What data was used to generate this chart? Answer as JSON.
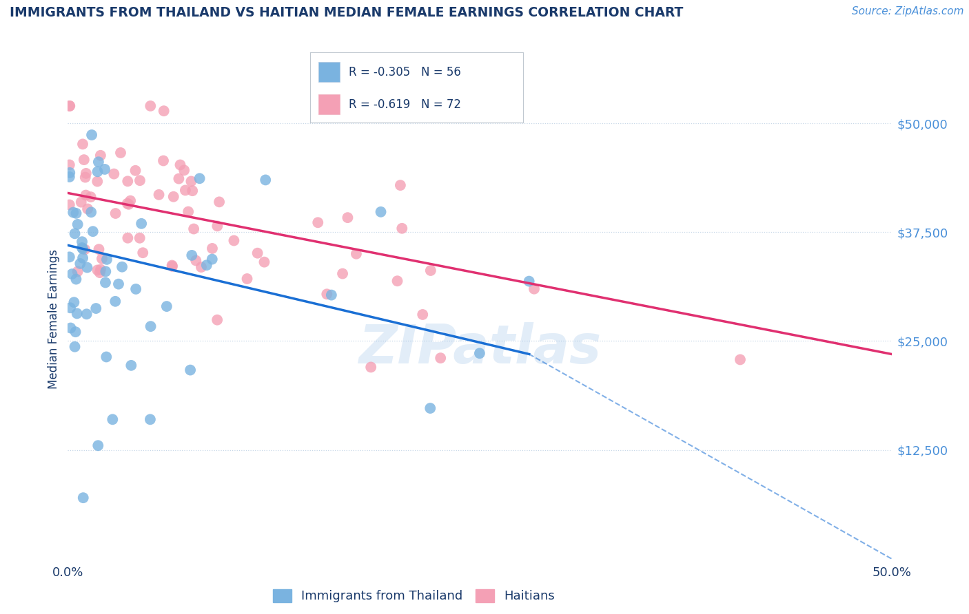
{
  "title": "IMMIGRANTS FROM THAILAND VS HAITIAN MEDIAN FEMALE EARNINGS CORRELATION CHART",
  "source": "Source: ZipAtlas.com",
  "ylabel": "Median Female Earnings",
  "xlim": [
    0.0,
    0.5
  ],
  "ylim": [
    0,
    55000
  ],
  "yticks": [
    0,
    12500,
    25000,
    37500,
    50000
  ],
  "ytick_labels": [
    "",
    "$12,500",
    "$25,000",
    "$37,500",
    "$50,000"
  ],
  "title_color": "#1a3a6b",
  "background_color": "#ffffff",
  "grid_color": "#c8d8e8",
  "watermark": "ZIPatlas",
  "watermark_color": "#a0c4e8",
  "thailand_color": "#7ab3e0",
  "haiti_color": "#f4a0b5",
  "thailand_line_color": "#1a6fd4",
  "haiti_line_color": "#e03070",
  "thailand_R": -0.305,
  "thailand_N": 56,
  "haiti_R": -0.619,
  "haiti_N": 72,
  "thai_line_x0": 0.0,
  "thai_line_y0": 36000,
  "thai_line_x1": 0.28,
  "thai_line_y1": 23500,
  "thai_line_xd": 0.5,
  "thai_line_yd": 0,
  "haiti_line_x0": 0.0,
  "haiti_line_y0": 42000,
  "haiti_line_x1": 0.5,
  "haiti_line_y1": 23500
}
